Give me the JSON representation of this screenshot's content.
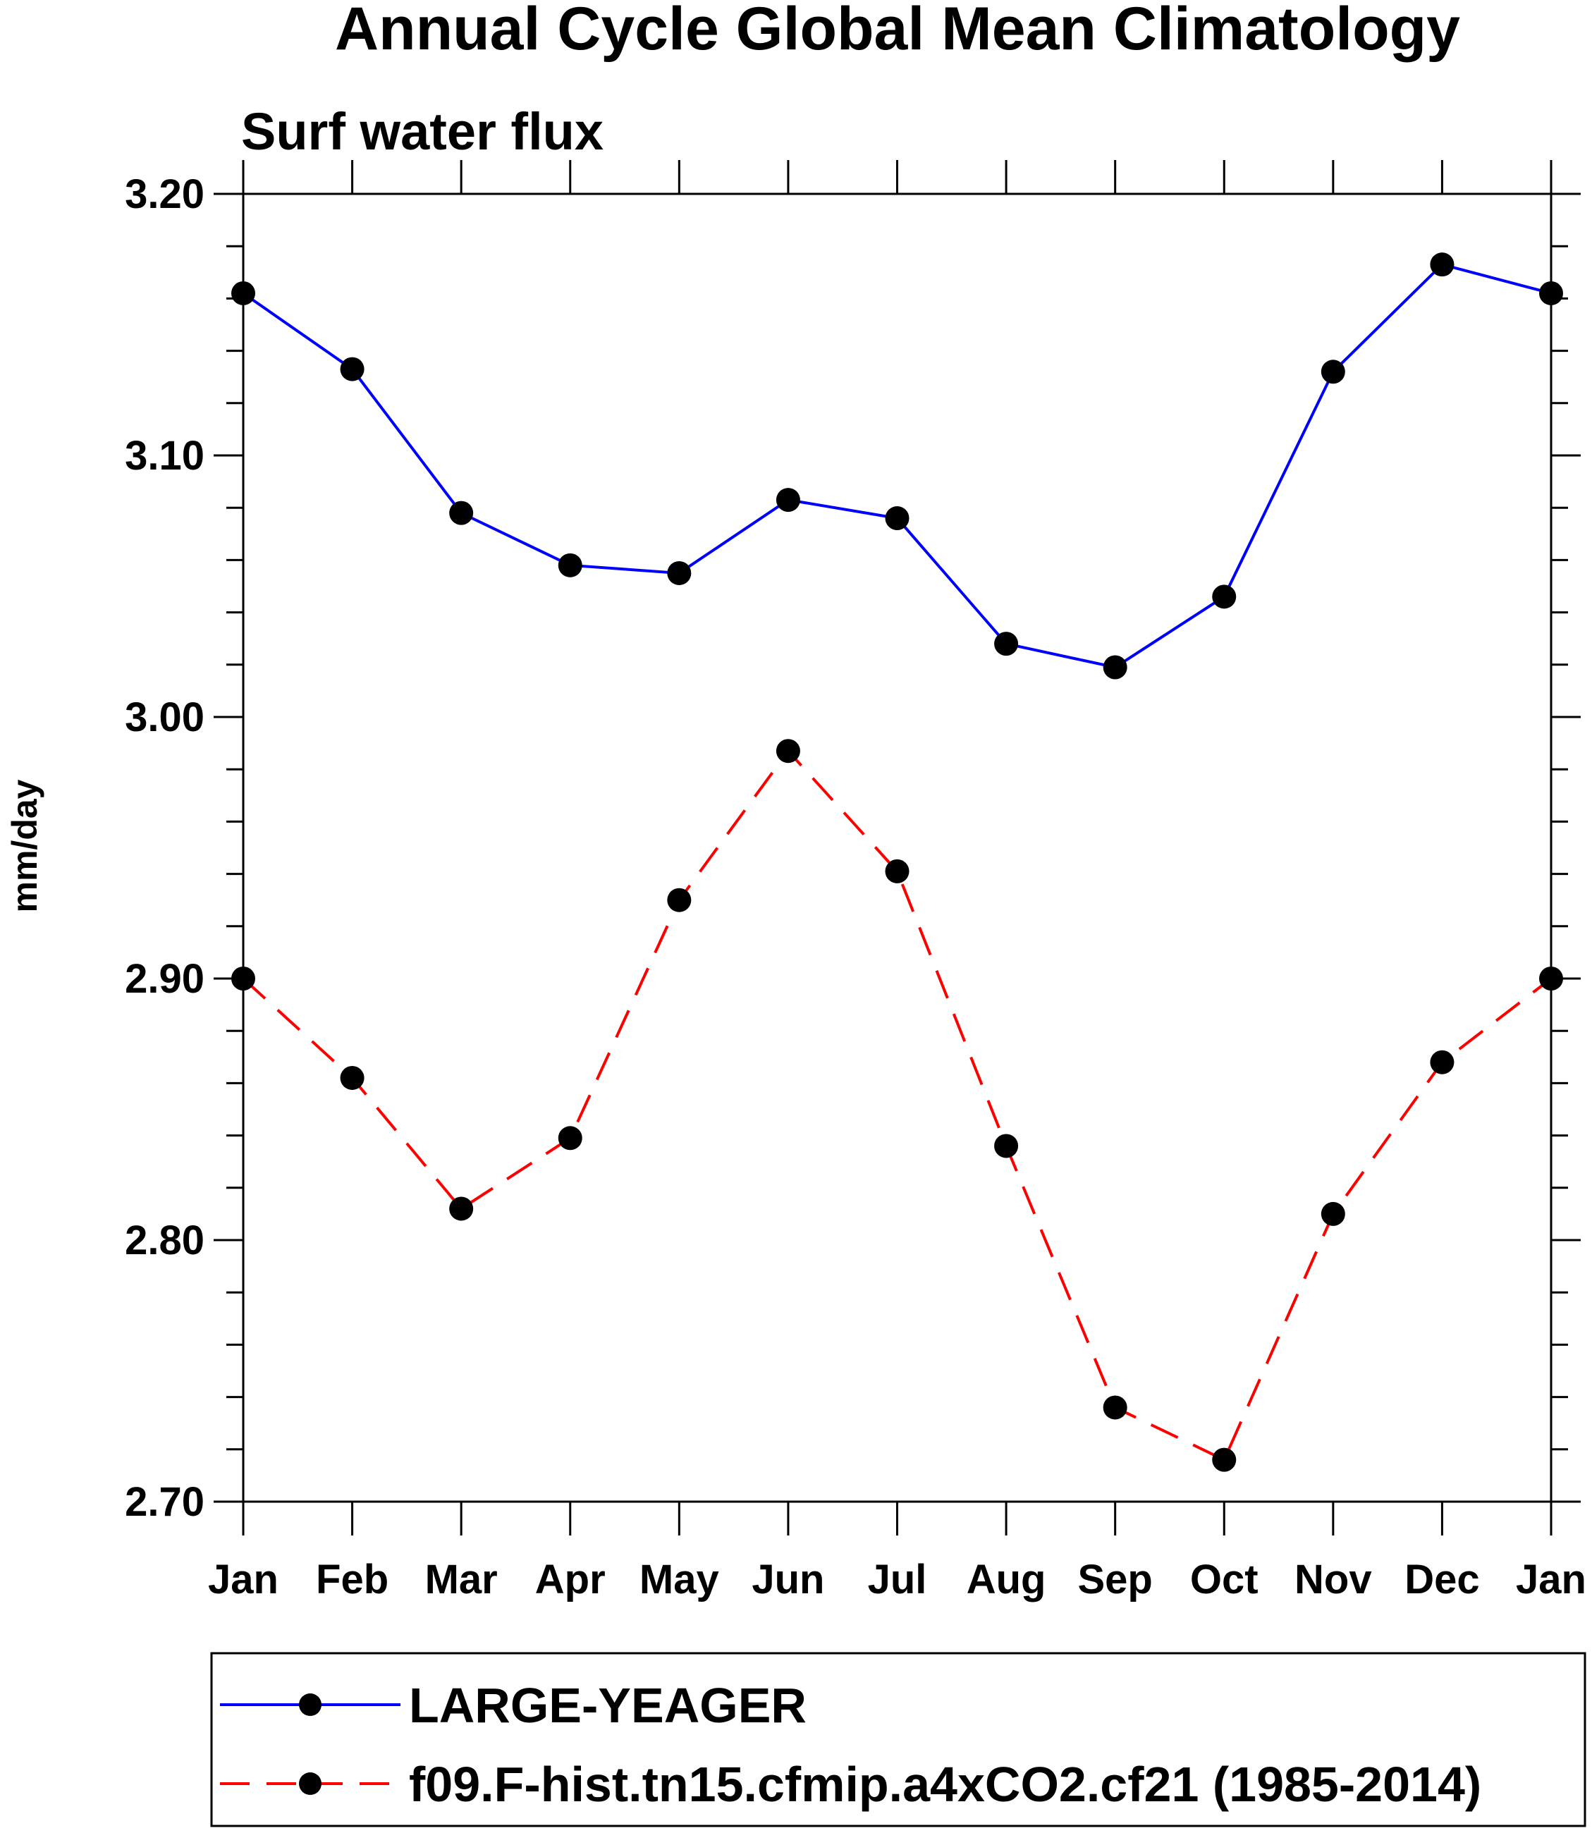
{
  "chart_data": {
    "type": "line",
    "title": "Annual Cycle Global Mean Climatology",
    "subtitle": "Surf water flux",
    "xlabel": "",
    "ylabel": "mm/day",
    "categories": [
      "Jan",
      "Feb",
      "Mar",
      "Apr",
      "May",
      "Jun",
      "Jul",
      "Aug",
      "Sep",
      "Oct",
      "Nov",
      "Dec",
      "Jan"
    ],
    "ylim": [
      2.7,
      3.2
    ],
    "yticks": [
      "3.20",
      "3.10",
      "3.00",
      "2.90",
      "2.80",
      "2.70"
    ],
    "grid": false,
    "legend_position": "bottom",
    "series": [
      {
        "name": "LARGE-YEAGER",
        "color": "#0000ff",
        "line_style": "solid",
        "marker": "filled-circle",
        "values": [
          3.162,
          3.133,
          3.078,
          3.058,
          3.055,
          3.083,
          3.076,
          3.028,
          3.019,
          3.046,
          3.132,
          3.173,
          3.162
        ]
      },
      {
        "name": "f09.F-hist.tn15.cfmip.a4xCO2.cf21 (1985-2014)",
        "color": "#ff0000",
        "line_style": "dashed",
        "marker": "filled-circle",
        "values": [
          2.9,
          2.862,
          2.812,
          2.839,
          2.93,
          2.987,
          2.941,
          2.836,
          2.736,
          2.716,
          2.81,
          2.868,
          2.9
        ]
      }
    ]
  }
}
